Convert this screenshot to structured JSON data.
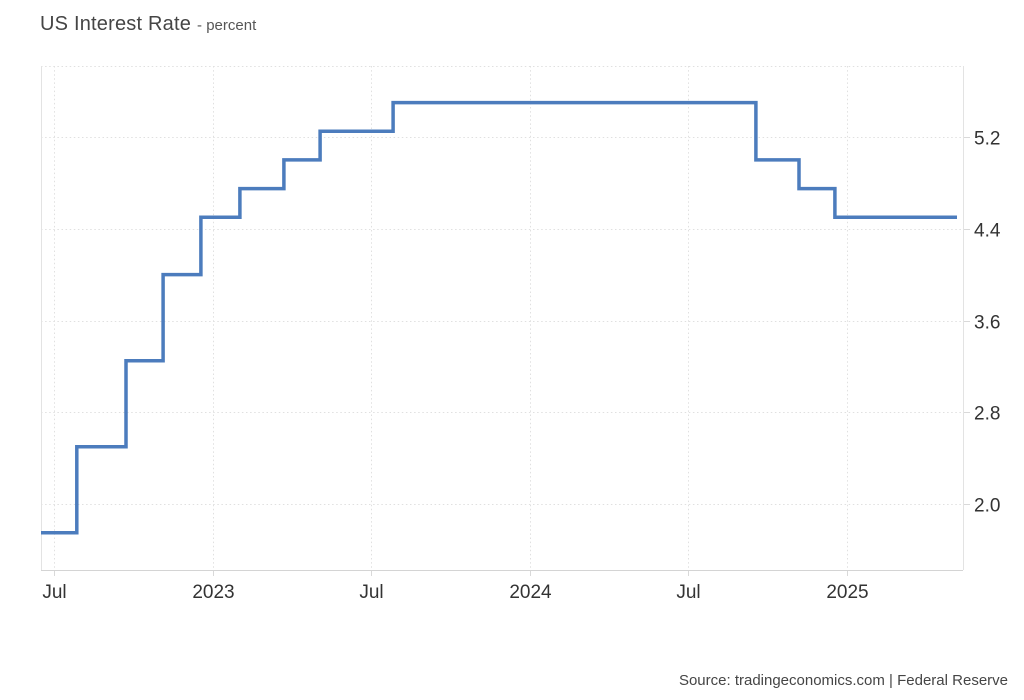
{
  "header": {
    "title": "US Interest Rate",
    "subtitle": "- percent"
  },
  "footer": {
    "source": "Source: tradingeconomics.com | Federal Reserve"
  },
  "chart_data": {
    "type": "line",
    "step": true,
    "title": "US Interest Rate",
    "ylabel": "percent",
    "legend_position": "none",
    "grid": "dotted",
    "x_range": [
      2022.459,
      2025.366
    ],
    "y_range": [
      1.425,
      5.819
    ],
    "series": [
      {
        "name": "US Interest Rate",
        "color": "#4c7cbd",
        "points": [
          [
            2022.459,
            1.75
          ],
          [
            2022.572,
            2.5
          ],
          [
            2022.727,
            3.25
          ],
          [
            2022.844,
            4.0
          ],
          [
            2022.963,
            4.5
          ],
          [
            2023.086,
            4.75
          ],
          [
            2023.225,
            5.0
          ],
          [
            2023.339,
            5.25
          ],
          [
            2023.569,
            5.5
          ],
          [
            2024.713,
            5.0
          ],
          [
            2024.849,
            4.75
          ],
          [
            2024.962,
            4.5
          ],
          [
            2025.347,
            4.5
          ]
        ]
      }
    ],
    "x_ticks": [
      {
        "x": 2022.5,
        "label": "Jul"
      },
      {
        "x": 2023.0,
        "label": "2023"
      },
      {
        "x": 2023.5,
        "label": "Jul"
      },
      {
        "x": 2024.0,
        "label": "2024"
      },
      {
        "x": 2024.5,
        "label": "Jul"
      },
      {
        "x": 2025.0,
        "label": "2025"
      }
    ],
    "y_ticks": [
      {
        "y": 2.0,
        "label": "2.0"
      },
      {
        "y": 2.8,
        "label": "2.8"
      },
      {
        "y": 3.6,
        "label": "3.6"
      },
      {
        "y": 4.4,
        "label": "4.4"
      },
      {
        "y": 5.2,
        "label": "5.2"
      }
    ],
    "colors": {
      "grid": "#e0e0e0",
      "axis_side": "#e3e3e3",
      "axis_bottom": "#d4d4d4",
      "tick": "#d9d9d9",
      "tick_text": "#333333"
    }
  }
}
